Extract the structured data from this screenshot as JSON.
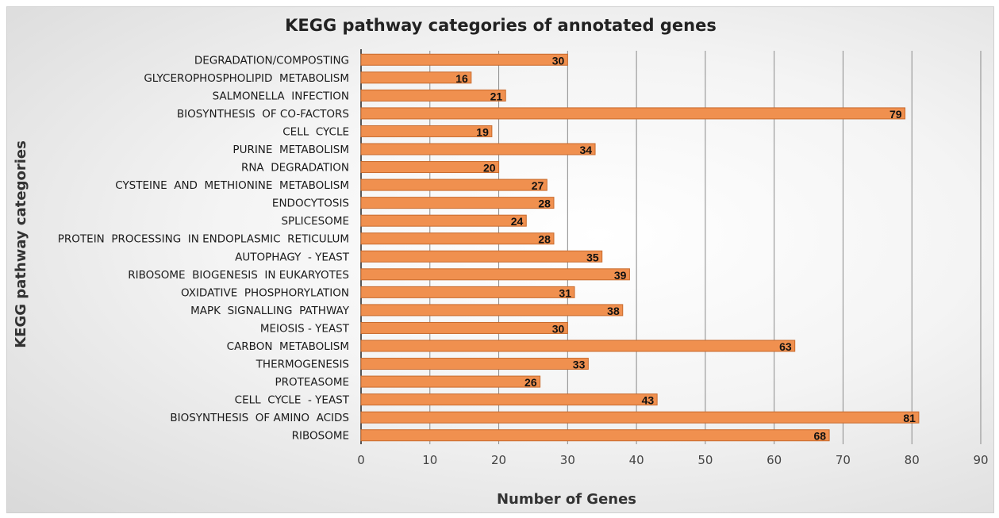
{
  "chart_data": {
    "type": "bar",
    "orientation": "horizontal",
    "title": "KEGG pathway categories of annotated genes",
    "xlabel": "Number of Genes",
    "ylabel": "KEGG pathway categories",
    "xlim": [
      0,
      90
    ],
    "xticks": [
      0,
      10,
      20,
      30,
      40,
      50,
      60,
      70,
      80,
      90
    ],
    "grid": true,
    "bar_color": "#f0904f",
    "categories": [
      "DEGRADATION/COMPOSTING",
      "GLYCEROPHOSPHOLIPID  METABOLISM",
      "SALMONELLA  INFECTION",
      "BIOSYNTHESIS  OF CO-FACTORS",
      "CELL  CYCLE",
      "PURINE  METABOLISM",
      "RNA  DEGRADATION",
      "CYSTEINE  AND  METHIONINE  METABOLISM",
      "ENDOCYTOSIS",
      "SPLICESOME",
      "PROTEIN  PROCESSING  IN ENDOPLASMIC  RETICULUM",
      "AUTOPHAGY  - YEAST",
      "RIBOSOME  BIOGENESIS  IN EUKARYOTES",
      "OXIDATIVE  PHOSPHORYLATION",
      "MAPK  SIGNALLING  PATHWAY",
      "MEIOSIS - YEAST",
      "CARBON  METABOLISM",
      "THERMOGENESIS",
      "PROTEASOME",
      "CELL  CYCLE  - YEAST",
      "BIOSYNTHESIS  OF AMINO  ACIDS",
      "RIBOSOME"
    ],
    "values": [
      30,
      16,
      21,
      79,
      19,
      34,
      20,
      27,
      28,
      24,
      28,
      35,
      39,
      31,
      38,
      30,
      63,
      33,
      26,
      43,
      81,
      68
    ]
  }
}
